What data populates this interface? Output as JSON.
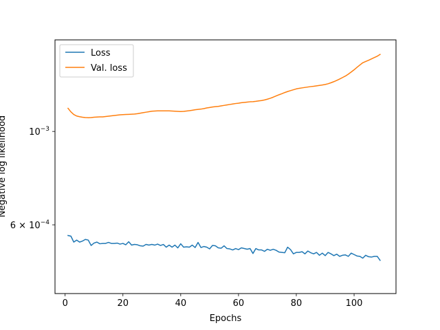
{
  "chart_data": {
    "type": "line",
    "title": "",
    "xlabel": "Epochs",
    "ylabel": "Negative log likelihood",
    "yscale": "log",
    "xlim": [
      -3.5,
      114.5
    ],
    "ylim": [
      0.000412,
      0.00165
    ],
    "x_ticks": [
      0,
      20,
      40,
      60,
      80,
      100
    ],
    "x_tick_labels": [
      "0",
      "20",
      "40",
      "60",
      "80",
      "100"
    ],
    "y_ticks": [
      0.001,
      0.0006
    ],
    "y_tick_labels": [
      {
        "base": "10",
        "exp": "−3"
      },
      {
        "base": "6 × 10",
        "exp": "−4"
      }
    ],
    "legend": {
      "position": "upper-left",
      "entries": [
        "Loss",
        "Val. loss"
      ]
    },
    "grid": false,
    "series": [
      {
        "name": "Loss",
        "color": "#1f77b4",
        "x": [
          1,
          2,
          3,
          4,
          5,
          6,
          7,
          8,
          9,
          10,
          11,
          12,
          13,
          14,
          15,
          16,
          17,
          18,
          19,
          20,
          21,
          22,
          23,
          24,
          25,
          26,
          27,
          28,
          29,
          30,
          31,
          32,
          33,
          34,
          35,
          36,
          37,
          38,
          39,
          40,
          41,
          42,
          43,
          44,
          45,
          46,
          47,
          48,
          49,
          50,
          51,
          52,
          53,
          54,
          55,
          56,
          57,
          58,
          59,
          60,
          61,
          62,
          63,
          64,
          65,
          66,
          67,
          68,
          69,
          70,
          71,
          72,
          73,
          74,
          75,
          76,
          77,
          78,
          79,
          80,
          81,
          82,
          83,
          84,
          85,
          86,
          87,
          88,
          89,
          90,
          91,
          92,
          93,
          94,
          95,
          96,
          97,
          98,
          99,
          100,
          101,
          102,
          103,
          104,
          105,
          106,
          107,
          108,
          109
        ],
        "y": [
          0.000566,
          0.000564,
          0.000546,
          0.000552,
          0.000546,
          0.000549,
          0.000554,
          0.000552,
          0.000536,
          0.000543,
          0.000546,
          0.000541,
          0.000542,
          0.000542,
          0.000545,
          0.000542,
          0.000542,
          0.000543,
          0.00054,
          0.000542,
          0.000538,
          0.000547,
          0.000537,
          0.000539,
          0.000538,
          0.000535,
          0.000534,
          0.000539,
          0.000537,
          0.000539,
          0.000537,
          0.00054,
          0.000536,
          0.000539,
          0.000531,
          0.000537,
          0.000531,
          0.000537,
          0.000529,
          0.000541,
          0.000531,
          0.000532,
          0.000531,
          0.000537,
          0.00053,
          0.000545,
          0.00053,
          0.000533,
          0.000531,
          0.000526,
          0.000536,
          0.000535,
          0.000529,
          0.000528,
          0.000535,
          0.000527,
          0.000526,
          0.000523,
          0.000527,
          0.000524,
          0.000529,
          0.000527,
          0.000525,
          0.000527,
          0.000513,
          0.000527,
          0.000523,
          0.000523,
          0.000519,
          0.000525,
          0.000522,
          0.000525,
          0.000522,
          0.000517,
          0.000516,
          0.000515,
          0.000531,
          0.000524,
          0.000512,
          0.000516,
          0.000516,
          0.000518,
          0.000512,
          0.00052,
          0.000515,
          0.000512,
          0.000516,
          0.000508,
          0.000514,
          0.000507,
          0.000516,
          0.000512,
          0.000507,
          0.000511,
          0.000505,
          0.000508,
          0.000509,
          0.000505,
          0.000514,
          0.00051,
          0.000506,
          0.000505,
          0.0005,
          0.000508,
          0.000504,
          0.000503,
          0.000505,
          0.000505,
          0.000494
        ]
      },
      {
        "name": "Val. loss",
        "color": "#ff7f0e",
        "x": [
          1,
          2,
          3,
          4,
          5,
          6,
          7,
          8,
          9,
          10,
          11,
          12,
          13,
          14,
          15,
          16,
          17,
          18,
          19,
          20,
          21,
          22,
          23,
          24,
          25,
          26,
          27,
          28,
          29,
          30,
          31,
          32,
          33,
          34,
          35,
          36,
          37,
          38,
          39,
          40,
          41,
          42,
          43,
          44,
          45,
          46,
          47,
          48,
          49,
          50,
          51,
          52,
          53,
          54,
          55,
          56,
          57,
          58,
          59,
          60,
          61,
          62,
          63,
          64,
          65,
          66,
          67,
          68,
          69,
          70,
          71,
          72,
          73,
          74,
          75,
          76,
          77,
          78,
          79,
          80,
          81,
          82,
          83,
          84,
          85,
          86,
          87,
          88,
          89,
          90,
          91,
          92,
          93,
          94,
          95,
          96,
          97,
          98,
          99,
          100,
          101,
          102,
          103,
          104,
          105,
          106,
          107,
          108,
          109
        ],
        "y": [
          0.001135,
          0.001113,
          0.001097,
          0.001088,
          0.001084,
          0.001081,
          0.001079,
          0.001078,
          0.001079,
          0.001081,
          0.001082,
          0.001083,
          0.001083,
          0.001085,
          0.001087,
          0.001089,
          0.001091,
          0.001093,
          0.001095,
          0.001096,
          0.001097,
          0.001098,
          0.001099,
          0.0011,
          0.001102,
          0.001105,
          0.001108,
          0.001111,
          0.001114,
          0.001117,
          0.001118,
          0.001119,
          0.001119,
          0.001119,
          0.001119,
          0.001119,
          0.001118,
          0.001117,
          0.001116,
          0.001115,
          0.001116,
          0.001118,
          0.00112,
          0.001123,
          0.001126,
          0.001128,
          0.00113,
          0.001133,
          0.001137,
          0.00114,
          0.001143,
          0.001145,
          0.001147,
          0.00115,
          0.001153,
          0.001156,
          0.001159,
          0.001162,
          0.001165,
          0.001167,
          0.00117,
          0.001172,
          0.001174,
          0.001176,
          0.001177,
          0.001179,
          0.001182,
          0.001184,
          0.001188,
          0.001193,
          0.001199,
          0.001206,
          0.001214,
          0.001222,
          0.001229,
          0.001237,
          0.001244,
          0.00125,
          0.001256,
          0.001262,
          0.001266,
          0.001269,
          0.001272,
          0.001275,
          0.001278,
          0.00128,
          0.001283,
          0.001286,
          0.001289,
          0.001293,
          0.001298,
          0.001305,
          0.001313,
          0.001322,
          0.001332,
          0.001343,
          0.001354,
          0.001368,
          0.001384,
          0.001401,
          0.00142,
          0.001438,
          0.001456,
          0.001466,
          0.001476,
          0.001487,
          0.001498,
          0.001509,
          0.001524
        ]
      }
    ]
  }
}
